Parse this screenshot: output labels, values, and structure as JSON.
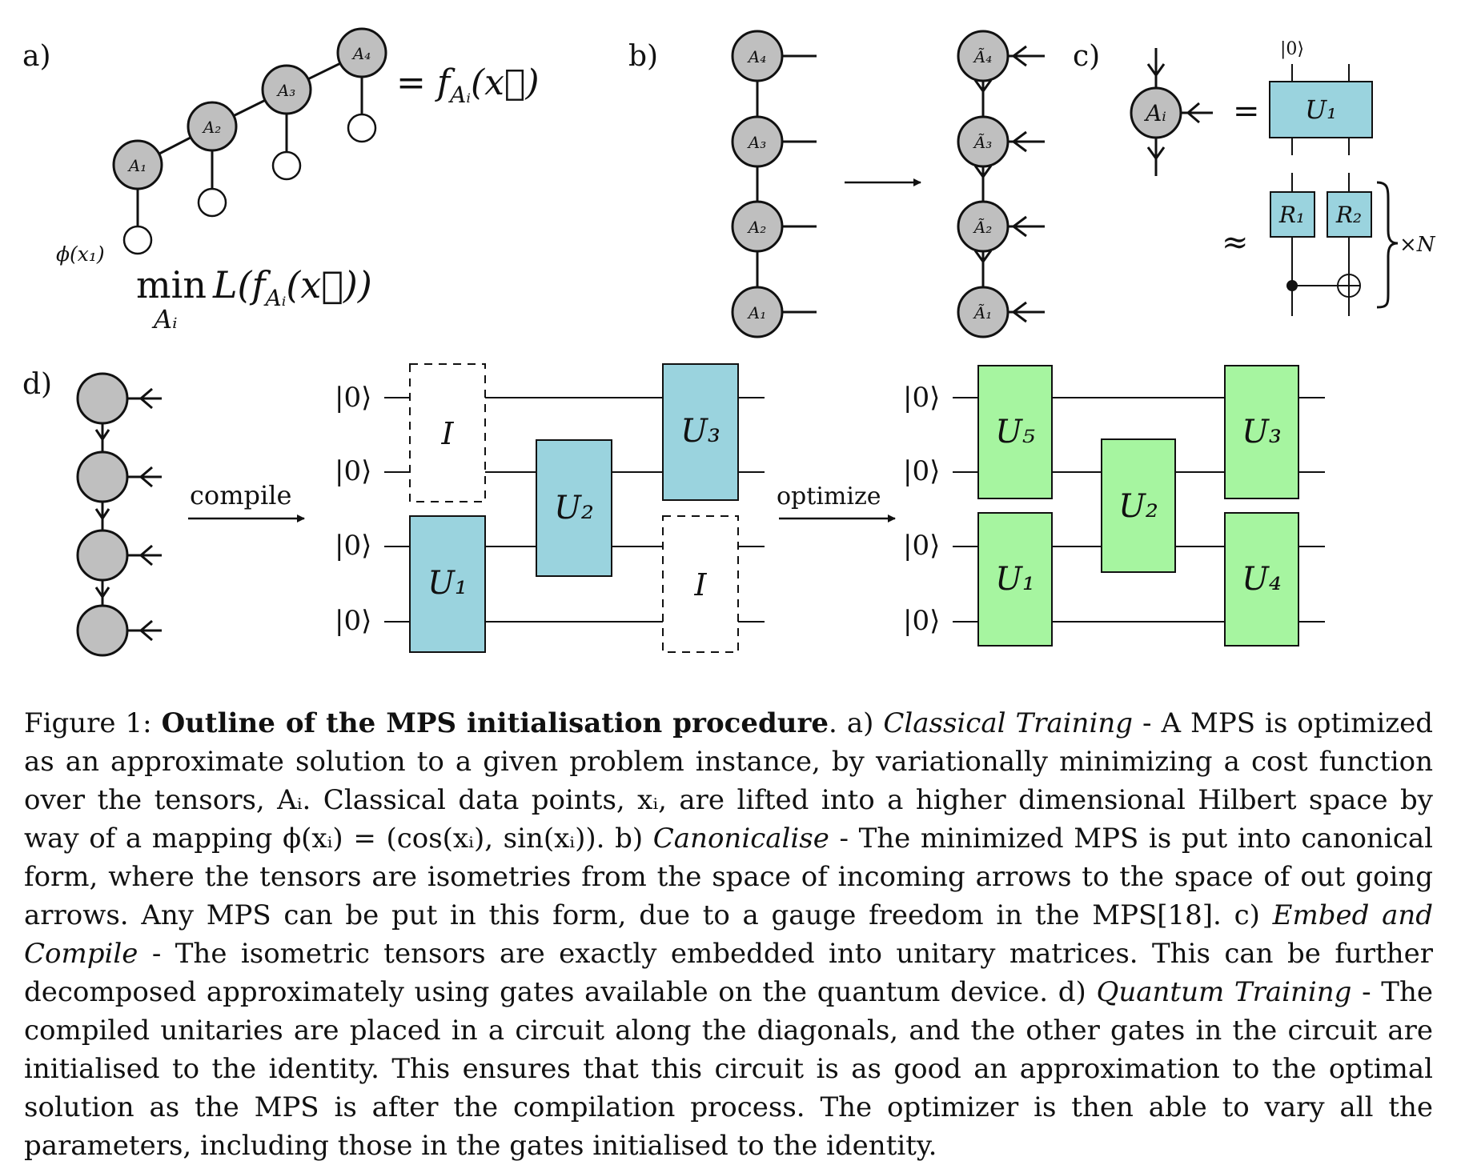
{
  "panels": {
    "a": {
      "label": "a)",
      "nodes": [
        "A₁",
        "A₂",
        "A₃",
        "A₄"
      ],
      "feature_label": "ϕ(x₁)",
      "equals_label": "= f",
      "equals_sub": "Aᵢ",
      "equals_arg": "(x⃗)",
      "min_word": "min",
      "min_sub": "Aᵢ",
      "loss_text": "L(f",
      "loss_sub": "Aᵢ",
      "loss_tail": "(x⃗))"
    },
    "b": {
      "label": "b)",
      "left_nodes": [
        "A₄",
        "A₃",
        "A₂",
        "A₁"
      ],
      "right_nodes": [
        "Ã₄",
        "Ã₃",
        "Ã₂",
        "Ã₁"
      ]
    },
    "c": {
      "label": "c)",
      "node": "Aᵢ",
      "equals": "=",
      "ket_top": "|0⟩",
      "unitary": "U₁",
      "approx": "≈",
      "r1": "R₁",
      "r2": "R₂",
      "repeat": "×N"
    },
    "d": {
      "label": "d)",
      "compile_label": "compile",
      "optimize_label": "optimize",
      "ket": "|0⟩",
      "circuit1": {
        "identity_label": "I",
        "gates": [
          "U₁",
          "U₂",
          "U₃"
        ]
      },
      "circuit2": {
        "gates": [
          "U₅",
          "U₁",
          "U₂",
          "U₃",
          "U₄"
        ]
      }
    }
  },
  "colors": {
    "node_fill": "#bfbfbf",
    "blue_gate": "#9ad3de",
    "green_gate": "#a6f5a0"
  },
  "caption": {
    "figure_num": "Figure 1:",
    "title": "Outline of the MPS initialisation procedure",
    "a_prefix": ". a)",
    "a_name": "Classical Training",
    "a_text": "- A MPS is optimized as an approximate solution to a given problem instance, by variationally minimizing a cost function over the tensors, Aᵢ. Classical data points, xᵢ, are lifted into a higher dimensional Hilbert space by way of a mapping ϕ(xᵢ) = (cos(xᵢ), sin(xᵢ)).",
    "b_prefix": "b)",
    "b_name": "Canonicalise",
    "b_text": "- The minimized MPS is put into canonical form, where the tensors are isometries from the space of incoming arrows to the space of out going arrows. Any MPS can be put in this form, due to a gauge freedom in the MPS[18].",
    "c_prefix": "c)",
    "c_name": "Embed and Compile",
    "c_text": "- The isometric tensors are exactly embedded into unitary matrices. This can be further decomposed approximately using gates available on the quantum device.",
    "d_prefix": "d)",
    "d_name": "Quantum Training",
    "d_text": "- The compiled unitaries are placed in a circuit along the diagonals, and the other gates in the circuit are initialised to the identity. This ensures that this circuit is as good an approximation to the optimal solution as the MPS is after the compilation process. The optimizer is then able to vary all the parameters, including those in the gates initialised to the identity."
  }
}
